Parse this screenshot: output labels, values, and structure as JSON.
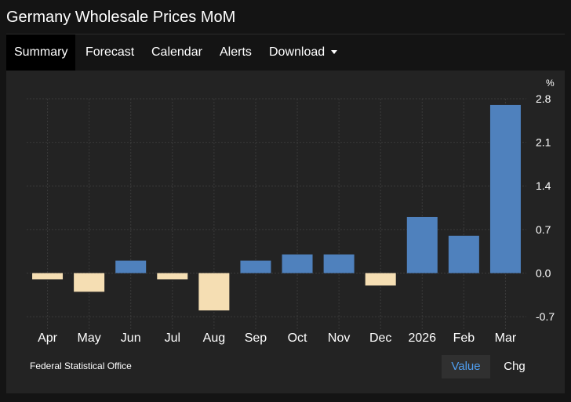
{
  "page": {
    "title": "Germany Wholesale Prices MoM"
  },
  "tabs": [
    {
      "label": "Summary",
      "active": true
    },
    {
      "label": "Forecast"
    },
    {
      "label": "Calendar"
    },
    {
      "label": "Alerts"
    },
    {
      "label": "Download",
      "dropdown": true
    }
  ],
  "footer": {
    "source": "Federal Statistical Office",
    "value_button": "Value",
    "chg_button": "Chg"
  },
  "colors": {
    "positive": "#4f81bd",
    "negative": "#f5deb3",
    "grid": "#3a3a3a",
    "text": "#ffffff",
    "accent": "#4f9ef0"
  },
  "chart_data": {
    "type": "bar",
    "unit": "%",
    "categories": [
      "Apr",
      "May",
      "Jun",
      "Jul",
      "Aug",
      "Sep",
      "Oct",
      "Nov",
      "Dec",
      "2026",
      "Feb",
      "Mar"
    ],
    "values": [
      -0.1,
      -0.3,
      0.2,
      -0.1,
      -0.6,
      0.2,
      0.3,
      0.3,
      -0.2,
      0.9,
      0.6,
      2.7
    ],
    "y_ticks": [
      "2.8",
      "2.1",
      "1.4",
      "0.7",
      "0.0",
      "-0.7"
    ],
    "ylim": [
      -0.9,
      2.8
    ],
    "grid": true
  }
}
